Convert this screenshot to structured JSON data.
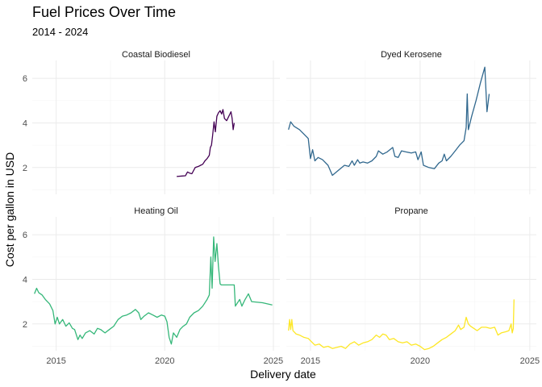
{
  "chart_data": {
    "type": "line",
    "title": "Fuel Prices Over Time",
    "subtitle": "2014 - 2024",
    "xlabel": "Delivery date",
    "ylabel": "Cost per gallon in USD",
    "xlim": [
      2013.9,
      2025.3
    ],
    "ylim": [
      0.8,
      6.8
    ],
    "x_ticks": [
      2015,
      2020,
      2025
    ],
    "y_ticks": [
      2,
      4,
      6
    ],
    "grid": true,
    "legend": "none",
    "facets": [
      "Coastal Biodiesel",
      "Dyed Kerosene",
      "Heating Oil",
      "Propane"
    ],
    "series": [
      {
        "name": "Coastal Biodiesel",
        "color": "#440154",
        "points": [
          [
            2020.55,
            1.6
          ],
          [
            2020.8,
            1.62
          ],
          [
            2020.95,
            1.63
          ],
          [
            2021.05,
            1.8
          ],
          [
            2021.15,
            1.75
          ],
          [
            2021.25,
            1.72
          ],
          [
            2021.4,
            2.0
          ],
          [
            2021.55,
            2.05
          ],
          [
            2021.65,
            2.1
          ],
          [
            2021.75,
            2.15
          ],
          [
            2021.85,
            2.3
          ],
          [
            2021.95,
            2.4
          ],
          [
            2022.05,
            2.55
          ],
          [
            2022.1,
            2.9
          ],
          [
            2022.15,
            3.0
          ],
          [
            2022.2,
            3.4
          ],
          [
            2022.27,
            4.05
          ],
          [
            2022.33,
            3.6
          ],
          [
            2022.4,
            4.3
          ],
          [
            2022.47,
            4.45
          ],
          [
            2022.55,
            4.55
          ],
          [
            2022.62,
            4.4
          ],
          [
            2022.68,
            4.6
          ],
          [
            2022.75,
            4.2
          ],
          [
            2022.85,
            4.1
          ],
          [
            2022.95,
            4.3
          ],
          [
            2023.05,
            4.5
          ],
          [
            2023.1,
            4.2
          ],
          [
            2023.15,
            3.7
          ],
          [
            2023.2,
            4.0
          ]
        ]
      },
      {
        "name": "Dyed Kerosene",
        "color": "#31688e",
        "points": [
          [
            2014.0,
            3.7
          ],
          [
            2014.1,
            4.05
          ],
          [
            2014.25,
            3.85
          ],
          [
            2014.5,
            3.7
          ],
          [
            2014.9,
            3.3
          ],
          [
            2015.0,
            2.4
          ],
          [
            2015.1,
            2.8
          ],
          [
            2015.2,
            2.3
          ],
          [
            2015.35,
            2.45
          ],
          [
            2015.55,
            2.35
          ],
          [
            2015.8,
            2.1
          ],
          [
            2016.0,
            1.65
          ],
          [
            2016.3,
            1.9
          ],
          [
            2016.55,
            2.1
          ],
          [
            2016.75,
            2.05
          ],
          [
            2016.9,
            2.3
          ],
          [
            2017.0,
            2.1
          ],
          [
            2017.15,
            2.35
          ],
          [
            2017.25,
            2.2
          ],
          [
            2017.4,
            2.25
          ],
          [
            2017.6,
            2.2
          ],
          [
            2017.8,
            2.3
          ],
          [
            2018.0,
            2.5
          ],
          [
            2018.1,
            2.75
          ],
          [
            2018.3,
            2.6
          ],
          [
            2018.5,
            2.7
          ],
          [
            2018.75,
            2.9
          ],
          [
            2018.85,
            2.5
          ],
          [
            2019.0,
            2.45
          ],
          [
            2019.15,
            2.75
          ],
          [
            2019.35,
            2.7
          ],
          [
            2019.6,
            2.65
          ],
          [
            2019.8,
            2.7
          ],
          [
            2019.9,
            2.35
          ],
          [
            2020.05,
            2.7
          ],
          [
            2020.15,
            2.1
          ],
          [
            2020.4,
            2.0
          ],
          [
            2020.65,
            1.95
          ],
          [
            2020.85,
            2.2
          ],
          [
            2021.0,
            2.3
          ],
          [
            2021.1,
            2.6
          ],
          [
            2021.2,
            2.3
          ],
          [
            2021.4,
            2.5
          ],
          [
            2021.6,
            2.75
          ],
          [
            2021.8,
            3.0
          ],
          [
            2022.0,
            3.2
          ],
          [
            2022.1,
            3.8
          ],
          [
            2022.15,
            5.3
          ],
          [
            2022.2,
            3.7
          ],
          [
            2022.35,
            4.3
          ],
          [
            2022.55,
            5.0
          ],
          [
            2022.75,
            5.8
          ],
          [
            2022.95,
            6.5
          ],
          [
            2023.05,
            4.5
          ],
          [
            2023.15,
            5.3
          ]
        ]
      },
      {
        "name": "Heating Oil",
        "color": "#35b779",
        "points": [
          [
            2014.0,
            3.35
          ],
          [
            2014.1,
            3.6
          ],
          [
            2014.2,
            3.4
          ],
          [
            2014.35,
            3.3
          ],
          [
            2014.5,
            3.1
          ],
          [
            2014.7,
            2.9
          ],
          [
            2014.85,
            2.6
          ],
          [
            2014.95,
            2.0
          ],
          [
            2015.05,
            2.3
          ],
          [
            2015.15,
            2.0
          ],
          [
            2015.3,
            2.2
          ],
          [
            2015.45,
            1.9
          ],
          [
            2015.6,
            2.05
          ],
          [
            2015.75,
            1.8
          ],
          [
            2015.85,
            1.75
          ],
          [
            2016.0,
            1.3
          ],
          [
            2016.1,
            1.5
          ],
          [
            2016.2,
            1.35
          ],
          [
            2016.35,
            1.6
          ],
          [
            2016.55,
            1.7
          ],
          [
            2016.75,
            1.55
          ],
          [
            2016.9,
            1.8
          ],
          [
            2017.05,
            1.75
          ],
          [
            2017.25,
            1.6
          ],
          [
            2017.45,
            1.75
          ],
          [
            2017.65,
            1.9
          ],
          [
            2017.85,
            2.2
          ],
          [
            2018.05,
            2.35
          ],
          [
            2018.25,
            2.4
          ],
          [
            2018.45,
            2.5
          ],
          [
            2018.65,
            2.65
          ],
          [
            2018.8,
            2.5
          ],
          [
            2018.9,
            2.2
          ],
          [
            2019.05,
            2.35
          ],
          [
            2019.25,
            2.5
          ],
          [
            2019.45,
            2.4
          ],
          [
            2019.65,
            2.3
          ],
          [
            2019.85,
            2.4
          ],
          [
            2020.0,
            2.35
          ],
          [
            2020.1,
            2.1
          ],
          [
            2020.2,
            1.4
          ],
          [
            2020.3,
            1.1
          ],
          [
            2020.4,
            1.6
          ],
          [
            2020.55,
            1.4
          ],
          [
            2020.7,
            1.75
          ],
          [
            2020.85,
            1.9
          ],
          [
            2021.0,
            2.0
          ],
          [
            2021.15,
            2.3
          ],
          [
            2021.35,
            2.5
          ],
          [
            2021.55,
            2.6
          ],
          [
            2021.75,
            2.8
          ],
          [
            2021.95,
            3.1
          ],
          [
            2022.05,
            3.3
          ],
          [
            2022.12,
            5.0
          ],
          [
            2022.18,
            3.6
          ],
          [
            2022.25,
            5.9
          ],
          [
            2022.32,
            4.8
          ],
          [
            2022.4,
            5.6
          ],
          [
            2022.47,
            4.6
          ],
          [
            2022.55,
            3.8
          ],
          [
            2022.6,
            3.75
          ],
          [
            2022.8,
            3.75
          ],
          [
            2023.0,
            3.75
          ],
          [
            2023.2,
            3.75
          ],
          [
            2023.25,
            2.8
          ],
          [
            2023.45,
            3.1
          ],
          [
            2023.55,
            2.8
          ],
          [
            2023.7,
            3.1
          ],
          [
            2023.85,
            3.35
          ],
          [
            2024.0,
            3.0
          ],
          [
            2024.5,
            2.95
          ],
          [
            2024.95,
            2.85
          ]
        ]
      },
      {
        "name": "Propane",
        "color": "#fde725",
        "points": [
          [
            2014.0,
            1.7
          ],
          [
            2014.05,
            2.2
          ],
          [
            2014.1,
            1.75
          ],
          [
            2014.15,
            2.2
          ],
          [
            2014.2,
            1.7
          ],
          [
            2014.35,
            1.55
          ],
          [
            2014.5,
            1.5
          ],
          [
            2014.7,
            1.4
          ],
          [
            2014.9,
            1.35
          ],
          [
            2015.05,
            1.2
          ],
          [
            2015.2,
            1.05
          ],
          [
            2015.4,
            1.1
          ],
          [
            2015.6,
            0.95
          ],
          [
            2015.8,
            1.0
          ],
          [
            2016.0,
            0.9
          ],
          [
            2016.2,
            0.95
          ],
          [
            2016.4,
            1.0
          ],
          [
            2016.6,
            0.9
          ],
          [
            2016.8,
            1.1
          ],
          [
            2017.0,
            1.2
          ],
          [
            2017.2,
            1.05
          ],
          [
            2017.4,
            1.15
          ],
          [
            2017.6,
            1.2
          ],
          [
            2017.8,
            1.3
          ],
          [
            2018.0,
            1.5
          ],
          [
            2018.15,
            1.4
          ],
          [
            2018.3,
            1.55
          ],
          [
            2018.45,
            1.5
          ],
          [
            2018.6,
            1.3
          ],
          [
            2018.8,
            1.35
          ],
          [
            2019.0,
            1.2
          ],
          [
            2019.2,
            1.15
          ],
          [
            2019.4,
            1.2
          ],
          [
            2019.6,
            1.05
          ],
          [
            2019.8,
            1.1
          ],
          [
            2020.0,
            1.0
          ],
          [
            2020.2,
            0.85
          ],
          [
            2020.4,
            0.9
          ],
          [
            2020.6,
            1.0
          ],
          [
            2020.8,
            1.15
          ],
          [
            2021.0,
            1.3
          ],
          [
            2021.2,
            1.4
          ],
          [
            2021.4,
            1.55
          ],
          [
            2021.6,
            1.7
          ],
          [
            2021.75,
            1.95
          ],
          [
            2021.85,
            1.75
          ],
          [
            2022.0,
            1.85
          ],
          [
            2022.1,
            2.3
          ],
          [
            2022.2,
            2.0
          ],
          [
            2022.3,
            1.9
          ],
          [
            2022.45,
            1.8
          ],
          [
            2022.6,
            1.7
          ],
          [
            2022.8,
            1.85
          ],
          [
            2023.0,
            1.85
          ],
          [
            2023.2,
            1.8
          ],
          [
            2023.4,
            1.85
          ],
          [
            2023.55,
            1.5
          ],
          [
            2023.7,
            1.6
          ],
          [
            2023.9,
            1.65
          ],
          [
            2024.05,
            1.7
          ],
          [
            2024.15,
            2.0
          ],
          [
            2024.2,
            1.6
          ],
          [
            2024.25,
            1.8
          ],
          [
            2024.28,
            3.1
          ]
        ]
      }
    ]
  }
}
